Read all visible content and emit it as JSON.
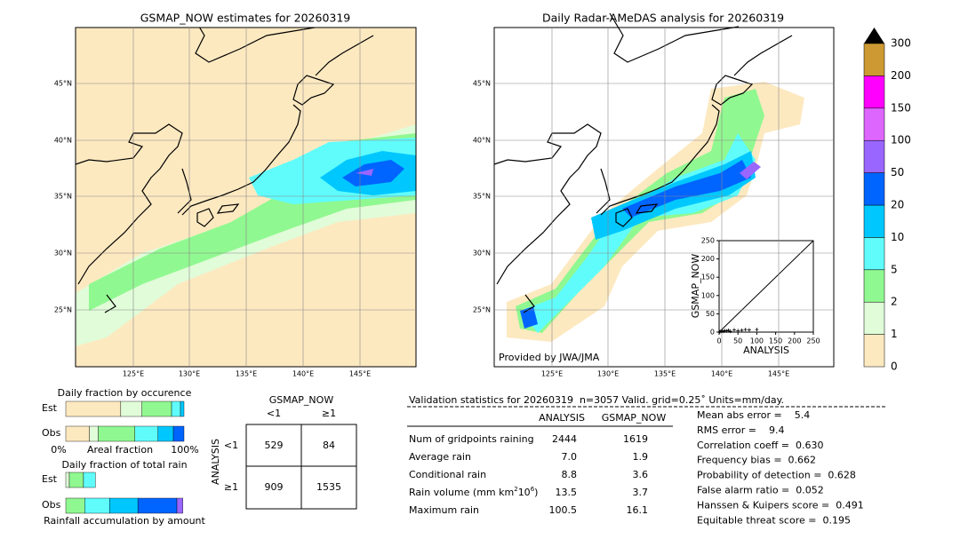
{
  "maps": [
    {
      "title": "GSMAP_NOW estimates for 20260319",
      "lat_labels": [
        "45°N",
        "40°N",
        "35°N",
        "30°N",
        "25°N"
      ],
      "lon_labels": [
        "125°E",
        "130°E",
        "135°E",
        "140°E",
        "145°E"
      ]
    },
    {
      "title": "Daily Radar-AMeDAS analysis for 20260319",
      "lat_labels": [
        "45°N",
        "40°N",
        "35°N",
        "30°N",
        "25°N"
      ],
      "lon_labels": [
        "125°E",
        "130°E",
        "135°E",
        "140°E",
        "145°E"
      ],
      "credit": "Provided by JWA/JMA"
    }
  ],
  "colorbar": {
    "levels": [
      0,
      1,
      2,
      5,
      10,
      20,
      50,
      100,
      150,
      200,
      300
    ],
    "colors": [
      "#fde9c0",
      "#e0fcd8",
      "#90f890",
      "#60fcfc",
      "#00c8ff",
      "#0064ff",
      "#9966ff",
      "#dd66ff",
      "#ff00ff",
      "#cc9933"
    ]
  },
  "inset": {
    "type": "scatter",
    "xlabel": "ANALYSIS",
    "ylabel": "GSMAP_NOW",
    "xlim": [
      0,
      250
    ],
    "ylim": [
      0,
      250
    ],
    "xticks": [
      0,
      50,
      100,
      150,
      200,
      250
    ],
    "yticks": [
      0,
      50,
      100,
      150,
      200,
      250
    ],
    "x": [
      2,
      5,
      8,
      12,
      15,
      20,
      25,
      30,
      40,
      50,
      60,
      70,
      80,
      100
    ],
    "y": [
      1,
      2,
      3,
      2,
      4,
      3,
      5,
      2,
      6,
      4,
      5,
      7,
      6,
      7
    ]
  },
  "occurrence": {
    "title": "Daily fraction by occurence",
    "rows": [
      {
        "name": "Est",
        "values": [
          0.465,
          0.18,
          0.25,
          0.075,
          0.03
        ]
      },
      {
        "name": "Obs",
        "values": [
          0.2,
          0.075,
          0.31,
          0.195,
          0.13,
          0.09
        ]
      }
    ],
    "left": "0%",
    "middle": "Areal fraction",
    "right": "100%"
  },
  "total_rain": {
    "title": "Daily fraction of total rain",
    "rows": [
      {
        "name": "Est",
        "values": [
          0.03,
          0.12,
          0.1
        ]
      },
      {
        "name": "Obs",
        "values": [
          0,
          0.16,
          0.21,
          0.24,
          0.33,
          0.05
        ]
      }
    ],
    "footer": "Rainfall accumulation by amount"
  },
  "contingency": {
    "col_title": "GSMAP_NOW",
    "cols": [
      "<1",
      "≥1"
    ],
    "row_title": "ANALYSIS",
    "rows": [
      "<1",
      "≥1"
    ],
    "cells": [
      [
        "529",
        "84"
      ],
      [
        "909",
        "1535"
      ]
    ]
  },
  "stats": {
    "header": "Validation statistics for 20260319  n=3057 Valid. grid=0.25˚ Units=mm/day.",
    "columns": [
      "ANALYSIS",
      "GSMAP_NOW"
    ],
    "rows": [
      {
        "label": [
          "Num of gridpoints raining"
        ],
        "values": [
          "2444",
          "1619"
        ]
      },
      {
        "label": [
          "Average rain"
        ],
        "values": [
          "7.0",
          "1.9"
        ]
      },
      {
        "label": [
          "Conditional rain"
        ],
        "values": [
          "8.8",
          "3.6"
        ]
      },
      {
        "label": [
          "Rain volume (mm km",
          "2",
          "10",
          "6",
          ")"
        ],
        "values": [
          "13.5",
          "3.7"
        ]
      },
      {
        "label": [
          "Maximum rain"
        ],
        "values": [
          "100.5",
          "16.1"
        ]
      }
    ],
    "scores": [
      "Mean abs error =    5.4",
      "RMS error =    9.4",
      "Correlation coeff =  0.630",
      "Frequency bias =  0.662",
      "Probability of detection =  0.628",
      "False alarm ratio =  0.052",
      "Hanssen & Kuipers score =  0.491",
      "Equitable threat score =  0.195"
    ]
  }
}
